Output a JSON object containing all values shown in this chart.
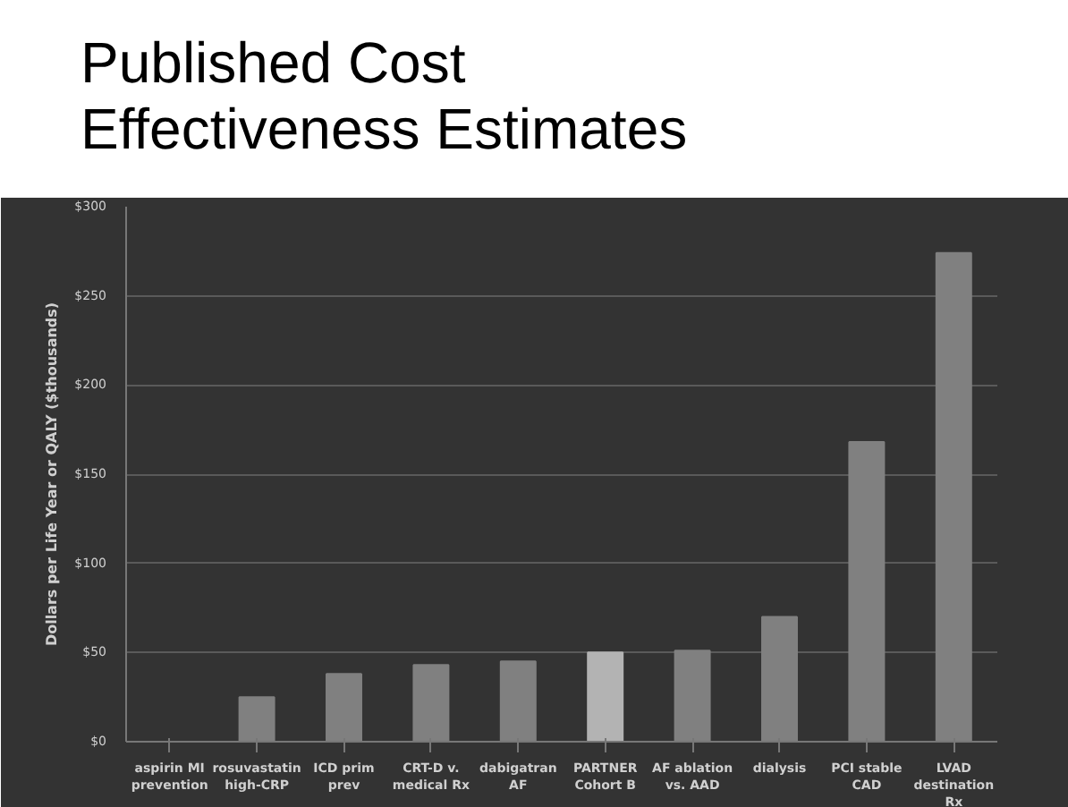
{
  "chart_data": {
    "type": "bar",
    "title": "Published Cost Effectiveness Estimates",
    "ylabel": "Dollars per Life Year or QALY ($thousands)",
    "categories": [
      "aspirin MI prevention",
      "rosuvastatin high-CRP",
      "ICD prim prev",
      "CRT-D v. medical Rx",
      "dabigatran AF",
      "PARTNER Cohort B",
      "AF ablation vs. AAD",
      "dialysis",
      "PCI stable CAD",
      "LVAD destination Rx"
    ],
    "values": [
      0,
      25,
      38,
      43,
      45,
      50,
      51,
      70,
      168,
      274
    ],
    "colors": [
      "#808080",
      "#808080",
      "#808080",
      "#808080",
      "#808080",
      "#b3b3b3",
      "#808080",
      "#808080",
      "#808080",
      "#808080"
    ],
    "ylim": [
      0,
      300
    ],
    "yticks": [
      {
        "value": 0,
        "label": "$0"
      },
      {
        "value": 50,
        "label": "$50"
      },
      {
        "value": 100,
        "label": "$100"
      },
      {
        "value": 150,
        "label": "$150"
      },
      {
        "value": 200,
        "label": "$200"
      },
      {
        "value": 250,
        "label": "$250"
      },
      {
        "value": 300,
        "label": "$300"
      }
    ],
    "grid": "y"
  }
}
